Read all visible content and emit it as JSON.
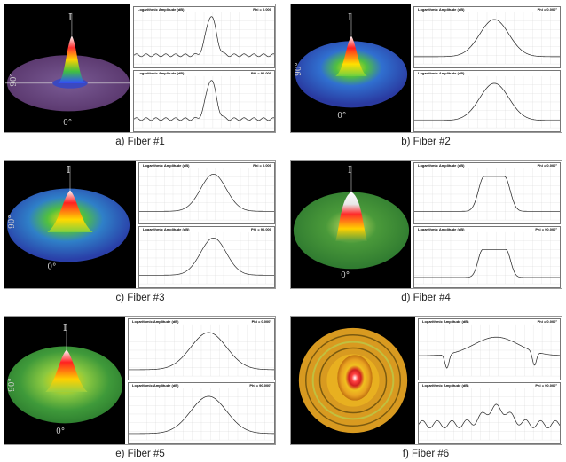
{
  "panels": [
    {
      "caption": "a) Fiber #1",
      "plot_title": "Logarithmic Amplitude (dB)",
      "phi_top": "Phi = 0.000",
      "phi_bottom": "Phi = 90.000",
      "label_i": "I",
      "label_90": "90°",
      "label_0": "0°"
    },
    {
      "caption": "b) Fiber #2",
      "plot_title": "Logarithmic Amplitude (dB)",
      "phi_top": "Phi = 0.000°",
      "phi_bottom": "",
      "label_i": "I",
      "label_90": "90°",
      "label_0": "0°"
    },
    {
      "caption": "c) Fiber #3",
      "plot_title": "Logarithmic Amplitude (dB)",
      "phi_top": "Phi = 0.000",
      "phi_bottom": "Phi = 90.000",
      "label_i": "I",
      "label_90": "90°",
      "label_0": "0°"
    },
    {
      "caption": "d) Fiber #4",
      "plot_title": "Logarithmic Amplitude (dB)",
      "phi_top": "Phi = 0.000°",
      "phi_bottom": "Phi = 90.000°",
      "label_i": "I",
      "label_90": "",
      "label_0": "0°"
    },
    {
      "caption": "e) Fiber #5",
      "plot_title": "Logarithmic Amplitude (dB)",
      "phi_top": "Phi = 0.000°",
      "phi_bottom": "Phi = 90.000°",
      "label_i": "I",
      "label_90": "90°",
      "label_0": "0°"
    },
    {
      "caption": "f) Fiber #6",
      "plot_title": "Logarithmic Amplitude (dB)",
      "phi_top": "Phi = 0.000°",
      "phi_bottom": "Phi = 90.000°",
      "label_i": "",
      "label_90": "",
      "label_0": ""
    }
  ]
}
